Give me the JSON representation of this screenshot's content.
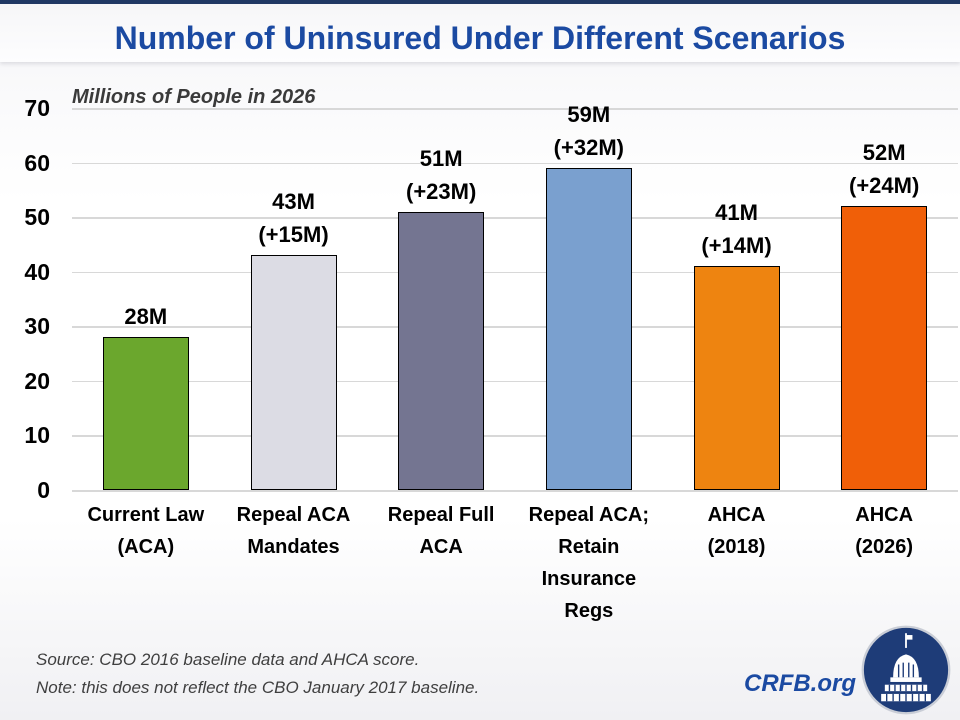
{
  "slide": {
    "title": "Number of Uninsured Under Different Scenarios",
    "subtitle": "Millions of People in 2026",
    "source_line1": "Source: CBO 2016 baseline data and AHCA score.",
    "source_line2": "Note: this does not reflect the CBO January 2017 baseline.",
    "brand": "CRFB.org",
    "logo_icon": "capitol-building-icon",
    "colors": {
      "title_blue": "#1B4AA2",
      "top_bar_navy": "#203864",
      "gridline_gray": "#D8D8D8",
      "logo_navy": "#1E3C78"
    }
  },
  "chart_data": {
    "type": "bar",
    "title": "Number of Uninsured Under Different Scenarios",
    "subtitle": "Millions of People in 2026",
    "categories": [
      "Current Law\n(ACA)",
      "Repeal ACA\nMandates",
      "Repeal Full\nACA",
      "Repeal ACA;\nRetain\nInsurance\nRegs",
      "AHCA\n(2018)",
      "AHCA\n(2026)"
    ],
    "values": [
      28,
      43,
      51,
      59,
      41,
      52
    ],
    "bar_labels": [
      "28M",
      "43M\n(+15M)",
      "51M\n(+23M)",
      "59M\n(+32M)",
      "41M\n(+14M)",
      "52M\n(+24M)"
    ],
    "bar_colors": [
      "#6BA72D",
      "#DCDCE4",
      "#747591",
      "#7AA0CF",
      "#EE8410",
      "#F05F08"
    ],
    "ylabel": "Millions of People in 2026",
    "xlabel": "",
    "ylim": [
      0,
      70
    ],
    "yticks": [
      0,
      10,
      20,
      30,
      40,
      50,
      60,
      70
    ],
    "grid": true,
    "legend": false
  }
}
